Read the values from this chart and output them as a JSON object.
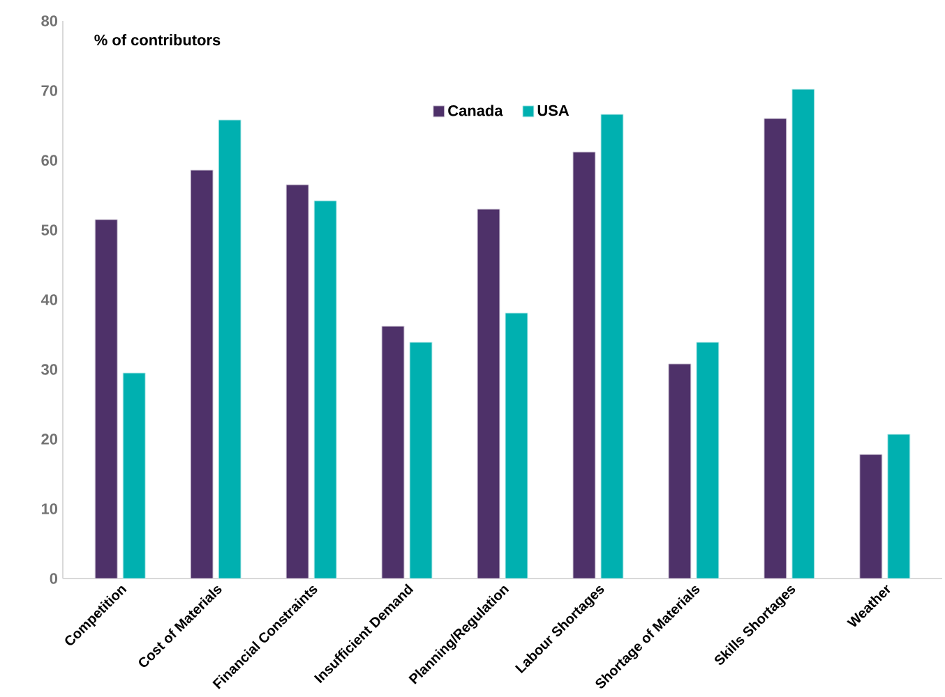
{
  "chart_data": {
    "type": "bar",
    "ylabel": "% of contributors",
    "categories": [
      "Competition",
      "Cost of Materials",
      "Financial Constraints",
      "Insufficient Demand",
      "Planning/Regulation",
      "Labour Shortages",
      "Shortage of Materials",
      "Skills Shortages",
      "Weather"
    ],
    "series": [
      {
        "name": "Canada",
        "color": "#4e3169",
        "values": [
          51.5,
          58.6,
          56.5,
          36.2,
          53.0,
          61.2,
          30.8,
          66.0,
          17.8
        ]
      },
      {
        "name": "USA",
        "color": "#00b0b0",
        "values": [
          29.5,
          65.8,
          54.2,
          33.9,
          38.1,
          66.6,
          33.9,
          70.2,
          20.7
        ]
      }
    ],
    "ylim": [
      0,
      80
    ],
    "yticks": [
      0,
      10,
      20,
      30,
      40,
      50,
      60,
      70,
      80
    ],
    "legend": "top",
    "grid": false
  }
}
